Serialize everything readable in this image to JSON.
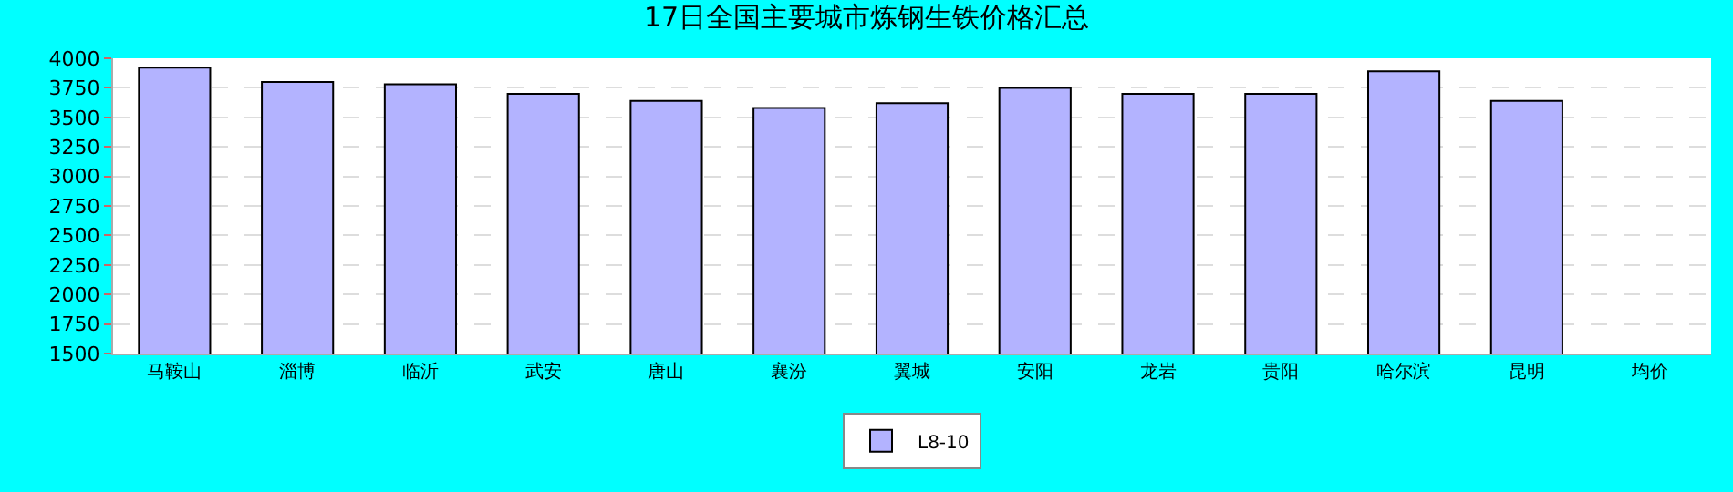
{
  "chart_data": {
    "type": "bar",
    "title": "17日全国主要城市炼钢生铁价格汇总",
    "categories": [
      "马鞍山",
      "淄博",
      "临沂",
      "武安",
      "唐山",
      "襄汾",
      "翼城",
      "安阳",
      "龙岩",
      "贵阳",
      "哈尔滨",
      "昆明",
      "均价"
    ],
    "series": [
      {
        "name": "L8-10",
        "color": "#b3b3ff",
        "values": [
          3920,
          3800,
          3780,
          3700,
          3640,
          3580,
          3620,
          3750,
          3700,
          3700,
          3890,
          3640,
          null
        ]
      }
    ],
    "ylim": [
      1500,
      4000
    ],
    "yticks": [
      1500,
      1750,
      2000,
      2250,
      2500,
      2750,
      3000,
      3250,
      3500,
      3750,
      4000
    ],
    "grid": "y",
    "legend": "bottom"
  }
}
